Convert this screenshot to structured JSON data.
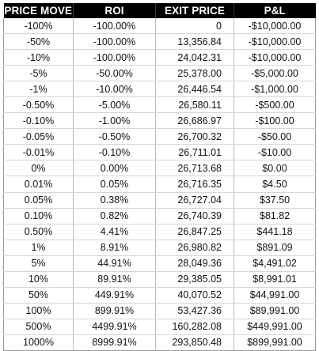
{
  "table": {
    "headers": [
      "PRICE MOVE",
      "ROI",
      "EXIT PRICE",
      "P&L"
    ],
    "rows": [
      {
        "move": "-100%",
        "roi": "-100.00%",
        "exit": "0",
        "pnl": "-$10,000.00"
      },
      {
        "move": "-50%",
        "roi": "-100.00%",
        "exit": "13,356.84",
        "pnl": "-$10,000.00"
      },
      {
        "move": "-10%",
        "roi": "-100.00%",
        "exit": "24,042.31",
        "pnl": "-$10,000.00"
      },
      {
        "move": "-5%",
        "roi": "-50.00%",
        "exit": "25,378.00",
        "pnl": "-$5,000.00"
      },
      {
        "move": "-1%",
        "roi": "-10.00%",
        "exit": "26,446.54",
        "pnl": "-$1,000.00"
      },
      {
        "move": "-0.50%",
        "roi": "-5.00%",
        "exit": "26,580.11",
        "pnl": "-$500.00"
      },
      {
        "move": "-0.10%",
        "roi": "-1.00%",
        "exit": "26,686.97",
        "pnl": "-$100.00"
      },
      {
        "move": "-0.05%",
        "roi": "-0.50%",
        "exit": "26,700.32",
        "pnl": "-$50.00"
      },
      {
        "move": "-0.01%",
        "roi": "-0.10%",
        "exit": "26,711.01",
        "pnl": "-$10.00"
      },
      {
        "move": "0%",
        "roi": "0.00%",
        "exit": "26,713.68",
        "pnl": "$0.00"
      },
      {
        "move": "0.01%",
        "roi": "0.05%",
        "exit": "26,716.35",
        "pnl": "$4.50"
      },
      {
        "move": "0.05%",
        "roi": "0.38%",
        "exit": "26,727.04",
        "pnl": "$37.50"
      },
      {
        "move": "0.10%",
        "roi": "0.82%",
        "exit": "26,740.39",
        "pnl": "$81.82"
      },
      {
        "move": "0.50%",
        "roi": "4.41%",
        "exit": "26,847.25",
        "pnl": "$441.18"
      },
      {
        "move": "1%",
        "roi": "8.91%",
        "exit": "26,980.82",
        "pnl": "$891.09"
      },
      {
        "move": "5%",
        "roi": "44.91%",
        "exit": "28,049.36",
        "pnl": "$4,491.02"
      },
      {
        "move": "10%",
        "roi": "89.91%",
        "exit": "29,385.05",
        "pnl": "$8,991.01"
      },
      {
        "move": "50%",
        "roi": "449.91%",
        "exit": "40,070.52",
        "pnl": "$44,991.00"
      },
      {
        "move": "100%",
        "roi": "899.91%",
        "exit": "53,427.36",
        "pnl": "$89,991.00"
      },
      {
        "move": "500%",
        "roi": "4499.91%",
        "exit": "160,282.08",
        "pnl": "$449,991.00"
      },
      {
        "move": "1000%",
        "roi": "8999.91%",
        "exit": "293,850.48",
        "pnl": "$899,991.00"
      }
    ]
  },
  "colors": {
    "header_bg": "#000000",
    "header_text": "#ffffff",
    "body_text": "#111111"
  }
}
